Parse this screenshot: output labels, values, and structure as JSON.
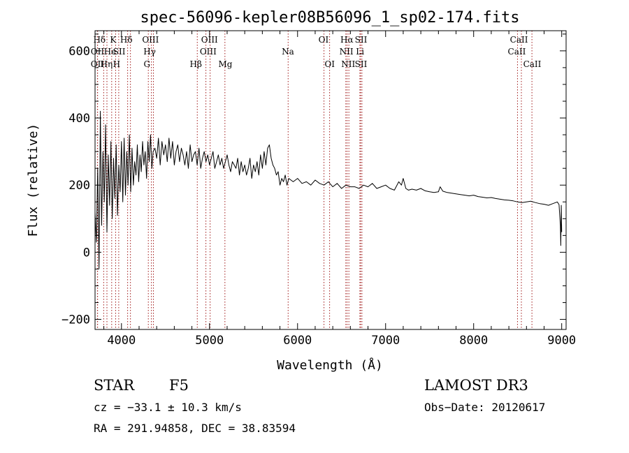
{
  "chart_data": {
    "type": "line",
    "title": "spec-56096-kepler08B56096_1_sp02-174.fits",
    "xlabel": "Wavelength (Å)",
    "ylabel": "Flux (relative)",
    "xlim": [
      3700,
      9050
    ],
    "ylim": [
      -230,
      660
    ],
    "xticks": [
      4000,
      5000,
      6000,
      7000,
      8000,
      9000
    ],
    "xtick_labels": [
      "4000",
      "5000",
      "6000",
      "7000",
      "8000",
      "9000"
    ],
    "yticks": [
      -200,
      0,
      200,
      400,
      600
    ],
    "ytick_labels": [
      "−200",
      "0",
      "200",
      "400",
      "600"
    ],
    "series": [
      {
        "name": "flux",
        "x": [
          3700,
          3715,
          3730,
          3745,
          3760,
          3775,
          3790,
          3805,
          3820,
          3835,
          3850,
          3865,
          3880,
          3895,
          3910,
          3925,
          3940,
          3955,
          3970,
          3985,
          4000,
          4015,
          4030,
          4045,
          4060,
          4075,
          4090,
          4105,
          4120,
          4135,
          4150,
          4165,
          4180,
          4195,
          4210,
          4225,
          4240,
          4255,
          4270,
          4285,
          4300,
          4315,
          4330,
          4345,
          4360,
          4380,
          4400,
          4420,
          4440,
          4460,
          4480,
          4500,
          4520,
          4540,
          4560,
          4580,
          4600,
          4620,
          4640,
          4660,
          4680,
          4700,
          4720,
          4740,
          4760,
          4780,
          4800,
          4820,
          4840,
          4860,
          4880,
          4900,
          4920,
          4940,
          4960,
          4980,
          5000,
          5020,
          5040,
          5060,
          5080,
          5100,
          5120,
          5140,
          5160,
          5180,
          5200,
          5220,
          5240,
          5260,
          5280,
          5300,
          5320,
          5340,
          5360,
          5380,
          5400,
          5420,
          5440,
          5460,
          5480,
          5500,
          5520,
          5540,
          5560,
          5580,
          5600,
          5620,
          5640,
          5660,
          5680,
          5700,
          5720,
          5740,
          5760,
          5780,
          5800,
          5820,
          5840,
          5860,
          5880,
          5900,
          5950,
          6000,
          6050,
          6100,
          6150,
          6200,
          6250,
          6300,
          6350,
          6400,
          6450,
          6500,
          6550,
          6600,
          6650,
          6700,
          6750,
          6800,
          6850,
          6900,
          6950,
          7000,
          7050,
          7100,
          7150,
          7180,
          7200,
          7230,
          7260,
          7300,
          7350,
          7400,
          7450,
          7500,
          7550,
          7600,
          7620,
          7650,
          7700,
          7750,
          7800,
          7850,
          7900,
          7950,
          8000,
          8050,
          8100,
          8150,
          8200,
          8250,
          8300,
          8350,
          8400,
          8450,
          8500,
          8550,
          8600,
          8650,
          8700,
          8750,
          8800,
          8850,
          8900,
          8950,
          8970,
          8985,
          8990,
          8995,
          9000
        ],
        "y": [
          120,
          30,
          250,
          -50,
          420,
          80,
          300,
          150,
          380,
          60,
          290,
          140,
          330,
          100,
          280,
          160,
          320,
          110,
          260,
          180,
          330,
          150,
          340,
          170,
          300,
          200,
          350,
          180,
          310,
          200,
          270,
          230,
          320,
          210,
          290,
          240,
          330,
          260,
          300,
          220,
          330,
          270,
          350,
          250,
          300,
          310,
          280,
          340,
          260,
          330,
          290,
          320,
          270,
          340,
          280,
          330,
          260,
          300,
          320,
          270,
          310,
          290,
          260,
          300,
          250,
          320,
          270,
          290,
          300,
          260,
          310,
          250,
          280,
          300,
          270,
          290,
          260,
          280,
          300,
          250,
          270,
          290,
          260,
          280,
          250,
          270,
          290,
          260,
          240,
          270,
          260,
          250,
          280,
          230,
          270,
          240,
          260,
          230,
          250,
          280,
          220,
          260,
          240,
          270,
          230,
          290,
          250,
          300,
          260,
          310,
          320,
          280,
          260,
          250,
          230,
          240,
          200,
          220,
          210,
          230,
          200,
          220,
          210,
          220,
          205,
          210,
          200,
          215,
          205,
          200,
          210,
          195,
          205,
          190,
          200,
          195,
          195,
          190,
          200,
          195,
          205,
          190,
          195,
          200,
          190,
          185,
          210,
          200,
          220,
          190,
          185,
          188,
          185,
          190,
          183,
          180,
          178,
          180,
          195,
          182,
          178,
          176,
          174,
          172,
          170,
          168,
          170,
          166,
          164,
          162,
          163,
          160,
          158,
          156,
          155,
          153,
          150,
          148,
          150,
          152,
          148,
          145,
          143,
          140,
          145,
          150,
          142,
          80,
          20,
          140,
          60
        ]
      }
    ],
    "lines": [
      {
        "name": "Hε",
        "wl": 3798
      },
      {
        "name": "OII",
        "wl": 3727
      },
      {
        "name": "K",
        "wl": 3934
      },
      {
        "name": "Hδ",
        "wl": 4102
      },
      {
        "name": "OIII",
        "wl": 4363
      },
      {
        "name": "He",
        "wl": 3889
      },
      {
        "name": "SII",
        "wl": 4070
      },
      {
        "name": "Hγ",
        "wl": 4340
      },
      {
        "name": "OII",
        "wl": 3729
      },
      {
        "name": "Hη",
        "wl": 3835
      },
      {
        "name": "H",
        "wl": 3969
      },
      {
        "name": "G",
        "wl": 4305
      },
      {
        "name": "Hβ",
        "wl": 4861
      },
      {
        "name": "OIII",
        "wl": 5007
      },
      {
        "name": "OIII",
        "wl": 4959
      },
      {
        "name": "Mg",
        "wl": 5175
      },
      {
        "name": "Na",
        "wl": 5893
      },
      {
        "name": "OI",
        "wl": 6300
      },
      {
        "name": "OI",
        "wl": 6364
      },
      {
        "name": "Hα",
        "wl": 6563
      },
      {
        "name": "NII",
        "wl": 6548
      },
      {
        "name": "NII",
        "wl": 6583
      },
      {
        "name": "SII",
        "wl": 6716
      },
      {
        "name": "SII",
        "wl": 6731
      },
      {
        "name": "Li",
        "wl": 6708
      },
      {
        "name": "CaII",
        "wl": 8542
      },
      {
        "name": "CaII",
        "wl": 8498
      },
      {
        "name": "CaII",
        "wl": 8662
      }
    ],
    "line_labels": [
      {
        "text": "Hδ",
        "wl": 3750,
        "row": 1
      },
      {
        "text": "OII",
        "wl": 3727,
        "row": 2
      },
      {
        "text": "OII",
        "wl": 3727,
        "row": 3
      },
      {
        "text": "K",
        "wl": 3905,
        "row": 1
      },
      {
        "text": "He",
        "wl": 3870,
        "row": 2
      },
      {
        "text": "SII",
        "wl": 3975,
        "row": 2
      },
      {
        "text": "Hη",
        "wl": 3830,
        "row": 3
      },
      {
        "text": "H",
        "wl": 3945,
        "row": 3
      },
      {
        "text": "Hδ",
        "wl": 4055,
        "row": 1
      },
      {
        "text": "OIII",
        "wl": 4330,
        "row": 1
      },
      {
        "text": "Hγ",
        "wl": 4320,
        "row": 2
      },
      {
        "text": "G",
        "wl": 4290,
        "row": 3
      },
      {
        "text": "Hβ",
        "wl": 4845,
        "row": 3
      },
      {
        "text": "OIII",
        "wl": 5000,
        "row": 1
      },
      {
        "text": "OIII",
        "wl": 4985,
        "row": 2
      },
      {
        "text": "Mg",
        "wl": 5180,
        "row": 3
      },
      {
        "text": "Na",
        "wl": 5890,
        "row": 2
      },
      {
        "text": "OI",
        "wl": 6295,
        "row": 1
      },
      {
        "text": "OI",
        "wl": 6365,
        "row": 3
      },
      {
        "text": "Hα",
        "wl": 6560,
        "row": 1
      },
      {
        "text": "SII",
        "wl": 6720,
        "row": 1
      },
      {
        "text": "NII",
        "wl": 6555,
        "row": 2
      },
      {
        "text": "Li",
        "wl": 6710,
        "row": 2
      },
      {
        "text": "NII",
        "wl": 6575,
        "row": 3
      },
      {
        "text": "SII",
        "wl": 6720,
        "row": 3
      },
      {
        "text": "CaII",
        "wl": 8515,
        "row": 1
      },
      {
        "text": "CaII",
        "wl": 8490,
        "row": 2
      },
      {
        "text": "CaII",
        "wl": 8665,
        "row": 3
      }
    ],
    "colors": {
      "spectrum": "#000000",
      "lines": "#a01818",
      "axes": "#000000"
    }
  },
  "info": {
    "object_class": "STAR",
    "subclass": "F5",
    "survey": "LAMOST DR3",
    "redshift": "cz = −33.1 ± 10.3 km/s",
    "obs_date": "Obs−Date: 20120617",
    "coords": "RA = 291.94858, DEC =  38.83594"
  }
}
